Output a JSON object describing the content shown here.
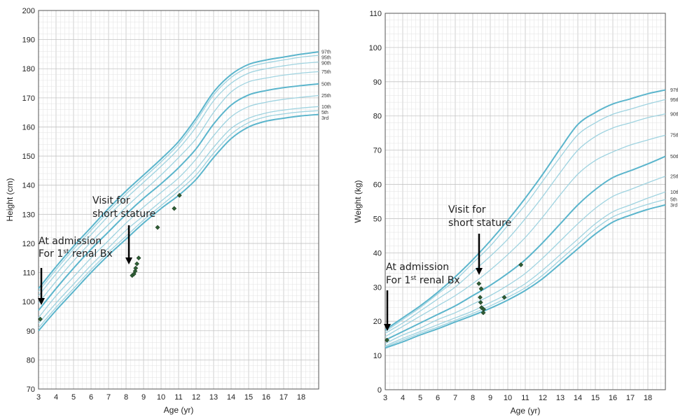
{
  "chart_data": [
    {
      "type": "line",
      "xlabel": "Age (yr)",
      "ylabel": "Height (cm)",
      "xlim": [
        3,
        19
      ],
      "ylim": [
        70,
        200
      ],
      "x_ticks": [
        3,
        4,
        5,
        6,
        7,
        8,
        9,
        10,
        11,
        12,
        13,
        14,
        15,
        16,
        17,
        18
      ],
      "y_ticks": [
        70,
        80,
        90,
        100,
        110,
        120,
        130,
        140,
        150,
        160,
        170,
        180,
        190,
        200
      ],
      "grid": true,
      "percentile_labels": [
        "97th",
        "95th",
        "90th",
        "75th",
        "50th",
        "25th",
        "10th",
        "5th",
        "3rd"
      ],
      "curve_ages": [
        3,
        4,
        5,
        6,
        7,
        8,
        9,
        10,
        11,
        12,
        13,
        14,
        15,
        16,
        17,
        18,
        19
      ],
      "series": [
        {
          "name": "97th",
          "values": [
            104.5,
            112,
            119,
            125.5,
            132,
            138,
            143.5,
            149,
            155,
            163,
            172,
            178,
            181.5,
            183,
            184,
            185,
            185.8
          ]
        },
        {
          "name": "95th",
          "values": [
            103.5,
            111,
            118,
            124.5,
            131,
            137,
            142.5,
            148,
            154,
            162,
            171,
            177,
            180.5,
            182,
            183,
            184,
            184.6
          ]
        },
        {
          "name": "90th",
          "values": [
            102,
            109.5,
            116.5,
            123,
            129.5,
            135.5,
            141,
            146.5,
            152.5,
            160,
            169,
            175,
            178.5,
            180,
            181,
            181.8,
            182.3
          ]
        },
        {
          "name": "75th",
          "values": [
            99.5,
            107,
            114,
            120.5,
            126.5,
            132.5,
            138,
            143.5,
            149.5,
            156,
            165,
            172,
            175.5,
            176.8,
            177.8,
            178.5,
            179
          ]
        },
        {
          "name": "50th",
          "values": [
            97,
            104.5,
            111.5,
            118,
            124,
            130,
            135.5,
            140.5,
            146,
            152.5,
            161,
            167.5,
            171,
            172.5,
            173.5,
            174.2,
            174.8
          ]
        },
        {
          "name": "25th",
          "values": [
            94.5,
            102,
            108.5,
            115,
            121,
            127,
            132.5,
            137.5,
            142.5,
            149,
            157,
            163.5,
            167,
            168.5,
            169.5,
            170.2,
            170.8
          ]
        },
        {
          "name": "10th",
          "values": [
            92.5,
            99.5,
            106,
            112.5,
            118.5,
            124.5,
            129.5,
            134.5,
            139.5,
            145.5,
            153,
            159.5,
            163,
            164.8,
            165.8,
            166.5,
            167
          ]
        },
        {
          "name": "5th",
          "values": [
            91,
            98,
            104.5,
            111,
            117,
            122.5,
            128,
            133,
            138,
            143.5,
            151,
            157.5,
            161.5,
            163.5,
            164.5,
            165.2,
            165.6
          ]
        },
        {
          "name": "3rd",
          "values": [
            90,
            97,
            103.5,
            110,
            116,
            121.5,
            127,
            132,
            136.5,
            142,
            149.5,
            156,
            160,
            162,
            163,
            163.8,
            164.3
          ]
        }
      ],
      "points": [
        {
          "x": 3.1,
          "y": 94
        },
        {
          "x": 8.35,
          "y": 109
        },
        {
          "x": 8.45,
          "y": 109.5
        },
        {
          "x": 8.52,
          "y": 110.5
        },
        {
          "x": 8.55,
          "y": 111.5
        },
        {
          "x": 8.62,
          "y": 113
        },
        {
          "x": 8.72,
          "y": 115
        },
        {
          "x": 9.8,
          "y": 125.5
        },
        {
          "x": 10.75,
          "y": 132
        },
        {
          "x": 11.05,
          "y": 136.5
        }
      ],
      "annotations": [
        {
          "line1": "At admission",
          "line2_pre": "For 1",
          "line2_sup": "st",
          "line2_post": " renal Bx"
        },
        {
          "line1": "Visit for",
          "line2": "short stature"
        }
      ]
    },
    {
      "type": "line",
      "xlabel": "Age (yr)",
      "ylabel": "Weight (kg)",
      "xlim": [
        3,
        19
      ],
      "ylim": [
        0,
        110
      ],
      "x_ticks": [
        3,
        4,
        5,
        6,
        7,
        8,
        9,
        10,
        11,
        12,
        13,
        14,
        15,
        16,
        17,
        18
      ],
      "y_ticks": [
        0,
        10,
        20,
        30,
        40,
        50,
        60,
        70,
        80,
        90,
        100,
        110
      ],
      "grid": true,
      "percentile_labels": [
        "97th",
        "95th",
        "90th",
        "75th",
        "50th",
        "25th",
        "10th",
        "5th",
        "3rd"
      ],
      "curve_ages": [
        3,
        4,
        5,
        6,
        7,
        8,
        9,
        10,
        11,
        12,
        13,
        14,
        15,
        16,
        17,
        18,
        19
      ],
      "series": [
        {
          "name": "97th",
          "values": [
            17.5,
            21,
            24.5,
            28.5,
            33,
            38,
            43.5,
            49.5,
            56,
            63,
            70.5,
            77.5,
            81,
            83.5,
            85,
            86.5,
            87.6
          ]
        },
        {
          "name": "95th",
          "values": [
            17,
            20.5,
            24,
            28,
            32,
            37,
            42,
            48,
            54,
            61,
            68,
            74.5,
            78,
            80.5,
            82,
            83.5,
            84.8
          ]
        },
        {
          "name": "90th",
          "values": [
            16.5,
            19.5,
            23,
            26.5,
            30,
            34.5,
            39,
            44,
            50,
            56.5,
            63.5,
            70,
            74,
            76.5,
            78,
            79.5,
            80.6
          ]
        },
        {
          "name": "75th",
          "values": [
            15.5,
            18.5,
            21.5,
            24.5,
            27.5,
            31,
            35,
            39.5,
            44.5,
            50.5,
            57,
            63,
            67,
            69.5,
            71.5,
            73,
            74.4
          ]
        },
        {
          "name": "50th",
          "values": [
            14.5,
            17,
            19.5,
            22,
            24.5,
            27.5,
            30.5,
            34,
            38,
            43,
            48.5,
            54,
            58.5,
            62,
            64,
            66,
            68.2
          ]
        },
        {
          "name": "25th",
          "values": [
            13.5,
            16,
            18,
            20.5,
            22.5,
            25,
            27.5,
            30.5,
            34,
            38.5,
            43.5,
            48.5,
            53,
            56.5,
            58.5,
            60.5,
            62.4
          ]
        },
        {
          "name": "10th",
          "values": [
            12.8,
            15,
            17,
            19,
            21,
            23,
            25.5,
            28,
            31,
            35,
            39.5,
            44,
            48.5,
            52,
            54,
            56,
            57.8
          ]
        },
        {
          "name": "5th",
          "values": [
            12.5,
            14.5,
            16.5,
            18.3,
            20.3,
            22.3,
            24.5,
            27,
            29.8,
            33.5,
            38,
            42.5,
            47,
            50.5,
            52.5,
            54.2,
            55.6
          ]
        },
        {
          "name": "3rd",
          "values": [
            12.2,
            14,
            16,
            17.8,
            19.8,
            21.7,
            23.8,
            26.2,
            29,
            32.5,
            36.8,
            41.2,
            45.5,
            49,
            51,
            52.7,
            54
          ]
        }
      ],
      "points": [
        {
          "x": 3.1,
          "y": 14.5
        },
        {
          "x": 8.35,
          "y": 31
        },
        {
          "x": 8.48,
          "y": 29.5
        },
        {
          "x": 8.42,
          "y": 27
        },
        {
          "x": 8.45,
          "y": 25.5
        },
        {
          "x": 8.5,
          "y": 24
        },
        {
          "x": 8.62,
          "y": 23.5
        },
        {
          "x": 8.6,
          "y": 22.5
        },
        {
          "x": 9.8,
          "y": 27
        },
        {
          "x": 10.75,
          "y": 36.5
        }
      ],
      "annotations": [
        {
          "line1": "At admission",
          "line2_pre": "For 1",
          "line2_sup": "st",
          "line2_post": " renal Bx"
        },
        {
          "line1": "Visit for",
          "line2": "short stature"
        }
      ]
    }
  ],
  "colors": {
    "grid_minor": "#e2e2e2",
    "grid_major": "#c4c4c4",
    "curve_light": "#9fd3e0",
    "curve_main": "#5bb5cc",
    "point": "#2f5e35",
    "arrow": "#000000"
  }
}
